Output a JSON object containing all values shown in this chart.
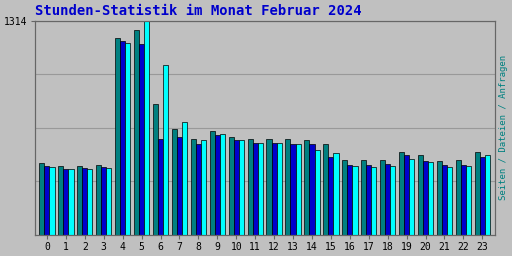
{
  "title": "Stunden-Statistik im Monat Februar 2024",
  "title_color": "#0000cc",
  "background_color": "#c0c0c0",
  "plot_bg_color": "#c0c0c0",
  "ylabel_right": "Seiten / Dateien / Anfragen",
  "ylabel_right_color": "#008080",
  "hours": [
    0,
    1,
    2,
    3,
    4,
    5,
    6,
    7,
    8,
    9,
    10,
    11,
    12,
    13,
    14,
    15,
    16,
    17,
    18,
    19,
    20,
    21,
    22,
    23
  ],
  "ytick_label": "1314",
  "bar_width": 0.27,
  "series": {
    "seiten": {
      "color": "#008080",
      "values": [
        440,
        420,
        425,
        430,
        1210,
        1260,
        800,
        650,
        590,
        640,
        600,
        590,
        590,
        590,
        585,
        560,
        460,
        460,
        460,
        510,
        490,
        455,
        460,
        510
      ]
    },
    "dateien": {
      "color": "#0000cc",
      "values": [
        425,
        405,
        410,
        415,
        1190,
        1170,
        590,
        600,
        560,
        610,
        580,
        565,
        565,
        560,
        555,
        480,
        430,
        430,
        435,
        490,
        455,
        430,
        430,
        480
      ]
    },
    "anfragen": {
      "color": "#00ffff",
      "values": [
        415,
        405,
        405,
        410,
        1175,
        1314,
        1040,
        690,
        580,
        620,
        580,
        565,
        565,
        560,
        520,
        500,
        420,
        415,
        425,
        465,
        445,
        415,
        425,
        490
      ]
    }
  },
  "ylim_max": 1314,
  "ytick_val": 1314,
  "grid_color": "#999999",
  "num_gridlines": 4
}
